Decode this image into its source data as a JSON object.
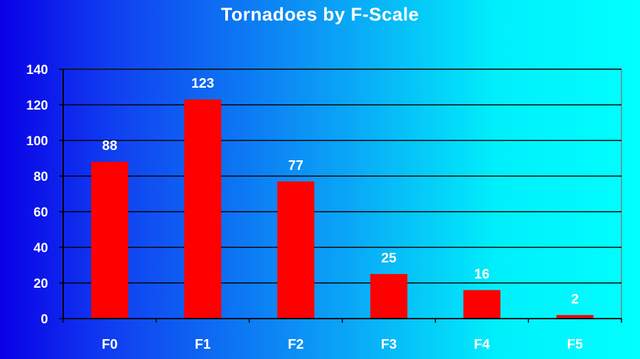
{
  "chart_data": {
    "type": "bar",
    "title": "Tornadoes by F-Scale",
    "xlabel": "",
    "ylabel": "",
    "categories": [
      "F0",
      "F1",
      "F2",
      "F3",
      "F4",
      "F5"
    ],
    "values": [
      88,
      123,
      77,
      25,
      16,
      2
    ],
    "data_labels": [
      "88",
      "123",
      "77",
      "25",
      "16",
      "2"
    ],
    "ylim": [
      0,
      140
    ],
    "yticks": [
      0,
      20,
      40,
      60,
      80,
      100,
      120,
      140
    ],
    "ytick_labels": [
      "0",
      "20",
      "40",
      "60",
      "80",
      "100",
      "120",
      "140"
    ],
    "grid": true,
    "legend": "none",
    "colors": {
      "bar": "#ff0000",
      "text": "#ffffff",
      "gridline": "#000000",
      "axis": "#000000",
      "plot_border": "#808080"
    }
  }
}
